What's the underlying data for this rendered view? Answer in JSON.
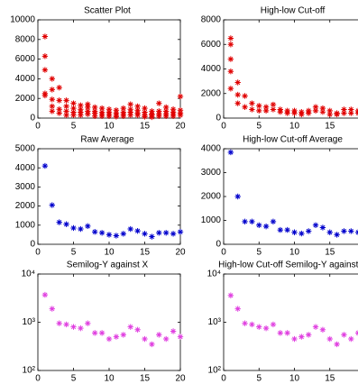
{
  "chart_data": [
    {
      "type": "scatter",
      "title": "Scatter Plot",
      "color": "#e00000",
      "xlim": [
        0,
        20
      ],
      "xticks": [
        0,
        5,
        10,
        15,
        20
      ],
      "ylim": [
        0,
        10000
      ],
      "yticks": [
        0,
        2000,
        4000,
        6000,
        8000,
        10000
      ],
      "x": [
        1,
        1,
        1,
        1,
        1,
        2,
        2,
        2,
        2,
        2,
        3,
        3,
        3,
        3,
        4,
        4,
        4,
        4,
        5,
        5,
        5,
        5,
        6,
        6,
        6,
        6,
        7,
        7,
        7,
        7,
        8,
        8,
        8,
        8,
        9,
        9,
        9,
        9,
        10,
        10,
        10,
        10,
        11,
        11,
        11,
        11,
        12,
        12,
        12,
        12,
        13,
        13,
        13,
        13,
        14,
        14,
        14,
        14,
        15,
        15,
        15,
        15,
        16,
        16,
        16,
        16,
        17,
        17,
        17,
        17,
        18,
        18,
        18,
        18,
        19,
        19,
        19,
        19,
        20,
        20,
        20,
        20
      ],
      "values": [
        8300,
        6300,
        4900,
        2500,
        2300,
        4000,
        2900,
        1900,
        1200,
        700,
        3100,
        1800,
        900,
        500,
        1800,
        1200,
        700,
        300,
        1500,
        1000,
        600,
        300,
        1300,
        900,
        600,
        300,
        1400,
        1100,
        700,
        400,
        1100,
        700,
        500,
        200,
        1000,
        600,
        400,
        200,
        900,
        600,
        400,
        200,
        800,
        500,
        300,
        150,
        1000,
        600,
        400,
        200,
        1400,
        900,
        600,
        300,
        1200,
        800,
        500,
        300,
        1000,
        600,
        300,
        150,
        700,
        400,
        300,
        100,
        1500,
        700,
        400,
        200,
        1100,
        700,
        400,
        200,
        900,
        600,
        400,
        200,
        2200,
        800,
        500,
        300
      ]
    },
    {
      "type": "scatter",
      "title": "High-low Cut-off",
      "color": "#e00000",
      "xlim": [
        0,
        20
      ],
      "xticks": [
        0,
        5,
        10,
        15,
        20
      ],
      "ylim": [
        0,
        8000
      ],
      "yticks": [
        0,
        2000,
        4000,
        6000,
        8000
      ],
      "x": [
        1,
        1,
        1,
        1,
        1,
        2,
        2,
        2,
        3,
        3,
        4,
        4,
        5,
        5,
        6,
        6,
        7,
        7,
        8,
        8,
        9,
        9,
        10,
        10,
        11,
        11,
        12,
        12,
        13,
        13,
        14,
        14,
        15,
        15,
        16,
        16,
        17,
        17,
        18,
        18,
        19,
        19,
        20,
        20
      ],
      "values": [
        6500,
        6000,
        4800,
        3800,
        2400,
        2900,
        1900,
        1200,
        1800,
        900,
        1200,
        700,
        1000,
        600,
        900,
        600,
        1100,
        700,
        700,
        500,
        600,
        400,
        600,
        400,
        500,
        300,
        600,
        400,
        900,
        600,
        800,
        500,
        600,
        300,
        400,
        300,
        700,
        400,
        700,
        400,
        600,
        400,
        800,
        500
      ]
    },
    {
      "type": "scatter",
      "title": "Raw Average",
      "color": "#0000cc",
      "xlim": [
        0,
        20
      ],
      "xticks": [
        0,
        5,
        10,
        15,
        20
      ],
      "ylim": [
        0,
        5000
      ],
      "yticks": [
        0,
        1000,
        2000,
        3000,
        4000,
        5000
      ],
      "x": [
        1,
        2,
        3,
        4,
        5,
        6,
        7,
        8,
        9,
        10,
        11,
        12,
        13,
        14,
        15,
        16,
        17,
        18,
        19,
        20
      ],
      "values": [
        4100,
        2050,
        1150,
        1050,
        850,
        800,
        950,
        650,
        600,
        500,
        450,
        550,
        800,
        700,
        550,
        400,
        600,
        600,
        550,
        650
      ]
    },
    {
      "type": "scatter",
      "title": "High-low Cut-off Average",
      "color": "#0000cc",
      "xlim": [
        0,
        20
      ],
      "xticks": [
        0,
        5,
        10,
        15,
        20
      ],
      "ylim": [
        0,
        4000
      ],
      "yticks": [
        0,
        1000,
        2000,
        3000,
        4000
      ],
      "x": [
        1,
        2,
        3,
        4,
        5,
        6,
        7,
        8,
        9,
        10,
        11,
        12,
        13,
        14,
        15,
        16,
        17,
        18,
        19,
        20
      ],
      "values": [
        3850,
        2000,
        950,
        950,
        800,
        750,
        950,
        600,
        600,
        500,
        450,
        550,
        800,
        700,
        500,
        400,
        550,
        550,
        500,
        550
      ]
    },
    {
      "type": "scatter",
      "title": "Semilog-Y against X",
      "color": "#e040e0",
      "log_scale": true,
      "xlim": [
        0,
        20
      ],
      "xticks": [
        0,
        5,
        10,
        15,
        20
      ],
      "ylim": [
        100,
        10000
      ],
      "yticks": [
        {
          "value": 100,
          "label": "10²"
        },
        {
          "value": 1000,
          "label": "10³"
        },
        {
          "value": 10000,
          "label": "10⁴"
        }
      ],
      "x": [
        1,
        2,
        3,
        4,
        5,
        6,
        7,
        8,
        9,
        10,
        11,
        12,
        13,
        14,
        15,
        16,
        17,
        18,
        19,
        20
      ],
      "values": [
        3700,
        1900,
        950,
        900,
        800,
        750,
        950,
        600,
        600,
        450,
        500,
        550,
        800,
        700,
        450,
        350,
        550,
        450,
        650,
        500
      ]
    },
    {
      "type": "scatter",
      "title": "High-low Cut-off Semilog-Y against X",
      "color": "#e040e0",
      "log_scale": true,
      "xlim": [
        0,
        20
      ],
      "xticks": [
        0,
        5,
        10,
        15,
        20
      ],
      "ylim": [
        100,
        10000
      ],
      "yticks": [
        {
          "value": 100,
          "label": "10²"
        },
        {
          "value": 1000,
          "label": "10³"
        },
        {
          "value": 10000,
          "label": "10⁴"
        }
      ],
      "x": [
        1,
        2,
        3,
        4,
        5,
        6,
        7,
        8,
        9,
        10,
        11,
        12,
        13,
        14,
        15,
        16,
        17,
        18,
        19,
        20
      ],
      "values": [
        3600,
        1900,
        950,
        900,
        800,
        750,
        900,
        600,
        600,
        450,
        500,
        550,
        800,
        700,
        450,
        350,
        550,
        450,
        600,
        500
      ]
    }
  ]
}
